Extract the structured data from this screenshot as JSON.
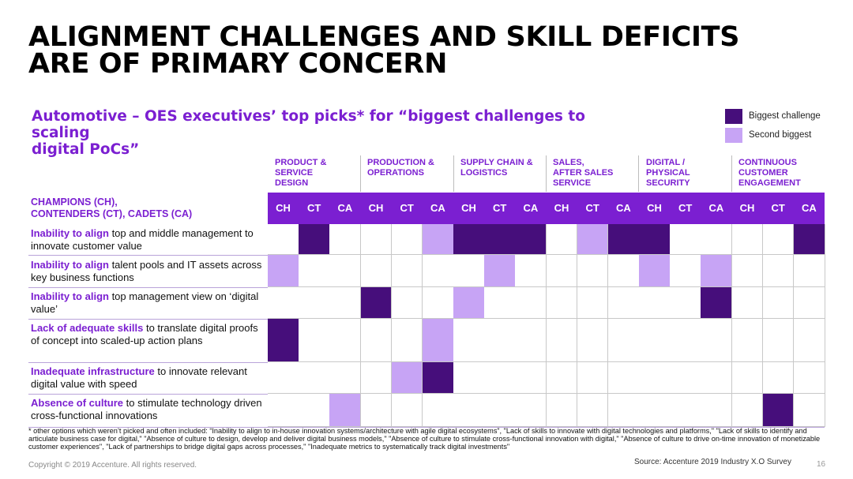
{
  "title_line1": "ALIGNMENT CHALLENGES AND SKILL DEFICITS",
  "title_line2": "ARE OF PRIMARY CONCERN",
  "subtitle_line1": "Automotive – OES executives’ top picks* for “biggest challenges to scaling",
  "subtitle_line2": "digital PoCs”",
  "legend": [
    {
      "label": "Biggest challenge",
      "color": "#460e7b"
    },
    {
      "label": "Second biggest",
      "color": "#c7a4f5"
    }
  ],
  "row_header_line1": "CHAMPIONS (CH),",
  "row_header_line2": "CONTENDERS (CT), CADETS (CA)",
  "chart_data": {
    "type": "table",
    "categories": [
      {
        "lines": [
          "PRODUCT &",
          "SERVICE",
          "DESIGN"
        ]
      },
      {
        "lines": [
          "PRODUCTION &",
          "OPERATIONS"
        ]
      },
      {
        "lines": [
          "SUPPLY CHAIN &",
          "LOGISTICS"
        ]
      },
      {
        "lines": [
          "SALES,",
          "AFTER SALES",
          "SERVICE"
        ]
      },
      {
        "lines": [
          "DIGITAL /",
          "PHYSICAL",
          "SECURITY"
        ]
      },
      {
        "lines": [
          "CONTINUOUS",
          "CUSTOMER",
          "ENGAGEMENT"
        ]
      }
    ],
    "groups": [
      "CH",
      "CT",
      "CA"
    ],
    "value_legend": {
      "0": "none",
      "1": "Second biggest",
      "2": "Biggest challenge"
    },
    "rows": [
      {
        "bold": "Inability to align",
        "rest": " top and middle management to innovate customer value",
        "values": [
          0,
          2,
          0,
          0,
          0,
          1,
          2,
          2,
          2,
          0,
          1,
          2,
          2,
          0,
          0,
          0,
          0,
          2
        ]
      },
      {
        "bold": "Inability to align",
        "rest": " talent pools and IT assets across key business functions",
        "values": [
          1,
          0,
          0,
          0,
          0,
          0,
          0,
          1,
          0,
          0,
          0,
          0,
          1,
          0,
          1,
          0,
          0,
          0
        ]
      },
      {
        "bold": "Inability to align",
        "rest": " top management view on ‘digital value’",
        "values": [
          0,
          0,
          0,
          2,
          0,
          0,
          1,
          0,
          0,
          0,
          0,
          0,
          0,
          0,
          2,
          0,
          0,
          0
        ]
      },
      {
        "bold": "Lack of adequate skills",
        "rest": " to translate digital proofs of concept into scaled-up action plans",
        "values": [
          2,
          0,
          0,
          0,
          0,
          1,
          0,
          0,
          0,
          0,
          0,
          0,
          0,
          0,
          0,
          0,
          0,
          0
        ]
      },
      {
        "bold": "Inadequate infrastructure",
        "rest": " to innovate relevant digital value with speed",
        "values": [
          0,
          0,
          0,
          0,
          1,
          2,
          0,
          0,
          0,
          0,
          0,
          0,
          0,
          0,
          0,
          0,
          0,
          0
        ]
      },
      {
        "bold": "Absence of culture",
        "rest": " to stimulate technology driven cross-functional innovations",
        "values": [
          0,
          0,
          1,
          0,
          0,
          0,
          0,
          0,
          0,
          0,
          0,
          0,
          0,
          0,
          0,
          0,
          2,
          0
        ]
      }
    ]
  },
  "footnote": "* other options which weren’t picked and often included: “Inability to align to in-house innovation systems/architecture with agile digital ecosystems”, \"Lack of skills to innovate with digital technologies and platforms,\" \"Lack of skills to identify and articulate business case for digital,\" \"Absence of culture to design, develop and deliver digital business models,\" \"Absence of culture to stimulate cross-functional innovation with digital,\" \"Absence of culture to drive on-time innovation of monetizable customer experiences\", \"Lack of partnerships to bridge digital gaps across processes,\" \"Inadequate metrics to systematically track digital investments\"",
  "copyright": "Copyright © 2019 Accenture. All rights reserved.",
  "source": "Source: Accenture 2019 Industry X.O Survey",
  "page_number": "16",
  "colors": {
    "accent": "#7b1fd1",
    "biggest": "#460e7b",
    "second": "#c7a4f5",
    "band": "#7b1fd1"
  }
}
